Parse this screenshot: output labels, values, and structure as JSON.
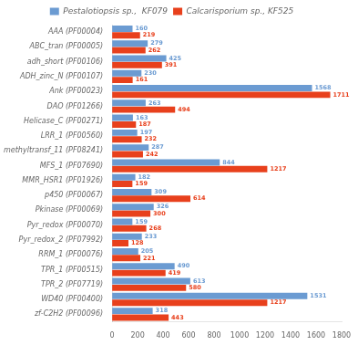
{
  "chart_data": {
    "type": "bar",
    "orientation": "horizontal",
    "categories": [
      "AAA (PF00004)",
      "ABC_tran (PF00005)",
      "adh_short (PF00106)",
      "ADH_zinc_N (PF00107)",
      "Ank (PF00023)",
      "DAO (PF01266)",
      "Helicase_C (PF00271)",
      "LRR_1 (PF00560)",
      "methyltransf_11 (PF08241)",
      "MFS_1 (PF07690)",
      "MMR_HSR1 (PF01926)",
      "p450 (PF00067)",
      "Pkinase (PF00069)",
      "Pyr_redox (PF00070)",
      "Pyr_redox_2 (PF07992)",
      "RRM_1 (PF00076)",
      "TPR_1 (PF00515)",
      "TPR_2 (PF07719)",
      "WD40 (PF00400)",
      "zf-C2H2 (PF00096)"
    ],
    "series": [
      {
        "name": "Pestalotiopsis sp.,  KF079",
        "color": "#6B9BD2",
        "values": [
          160,
          279,
          425,
          230,
          1568,
          263,
          163,
          197,
          287,
          844,
          182,
          309,
          326,
          159,
          233,
          205,
          490,
          613,
          1531,
          318
        ]
      },
      {
        "name": "Calcarisporium sp., KF525",
        "color": "#E8401C",
        "values": [
          219,
          262,
          391,
          161,
          1711,
          494,
          187,
          232,
          242,
          1217,
          159,
          614,
          300,
          268,
          128,
          221,
          419,
          580,
          1217,
          443
        ]
      }
    ],
    "xlim": [
      0,
      1800
    ],
    "xticks": [
      0,
      200,
      400,
      600,
      800,
      1000,
      1200,
      1400,
      1600,
      1800
    ],
    "data_labels": true,
    "legend": "top",
    "grid": false
  }
}
